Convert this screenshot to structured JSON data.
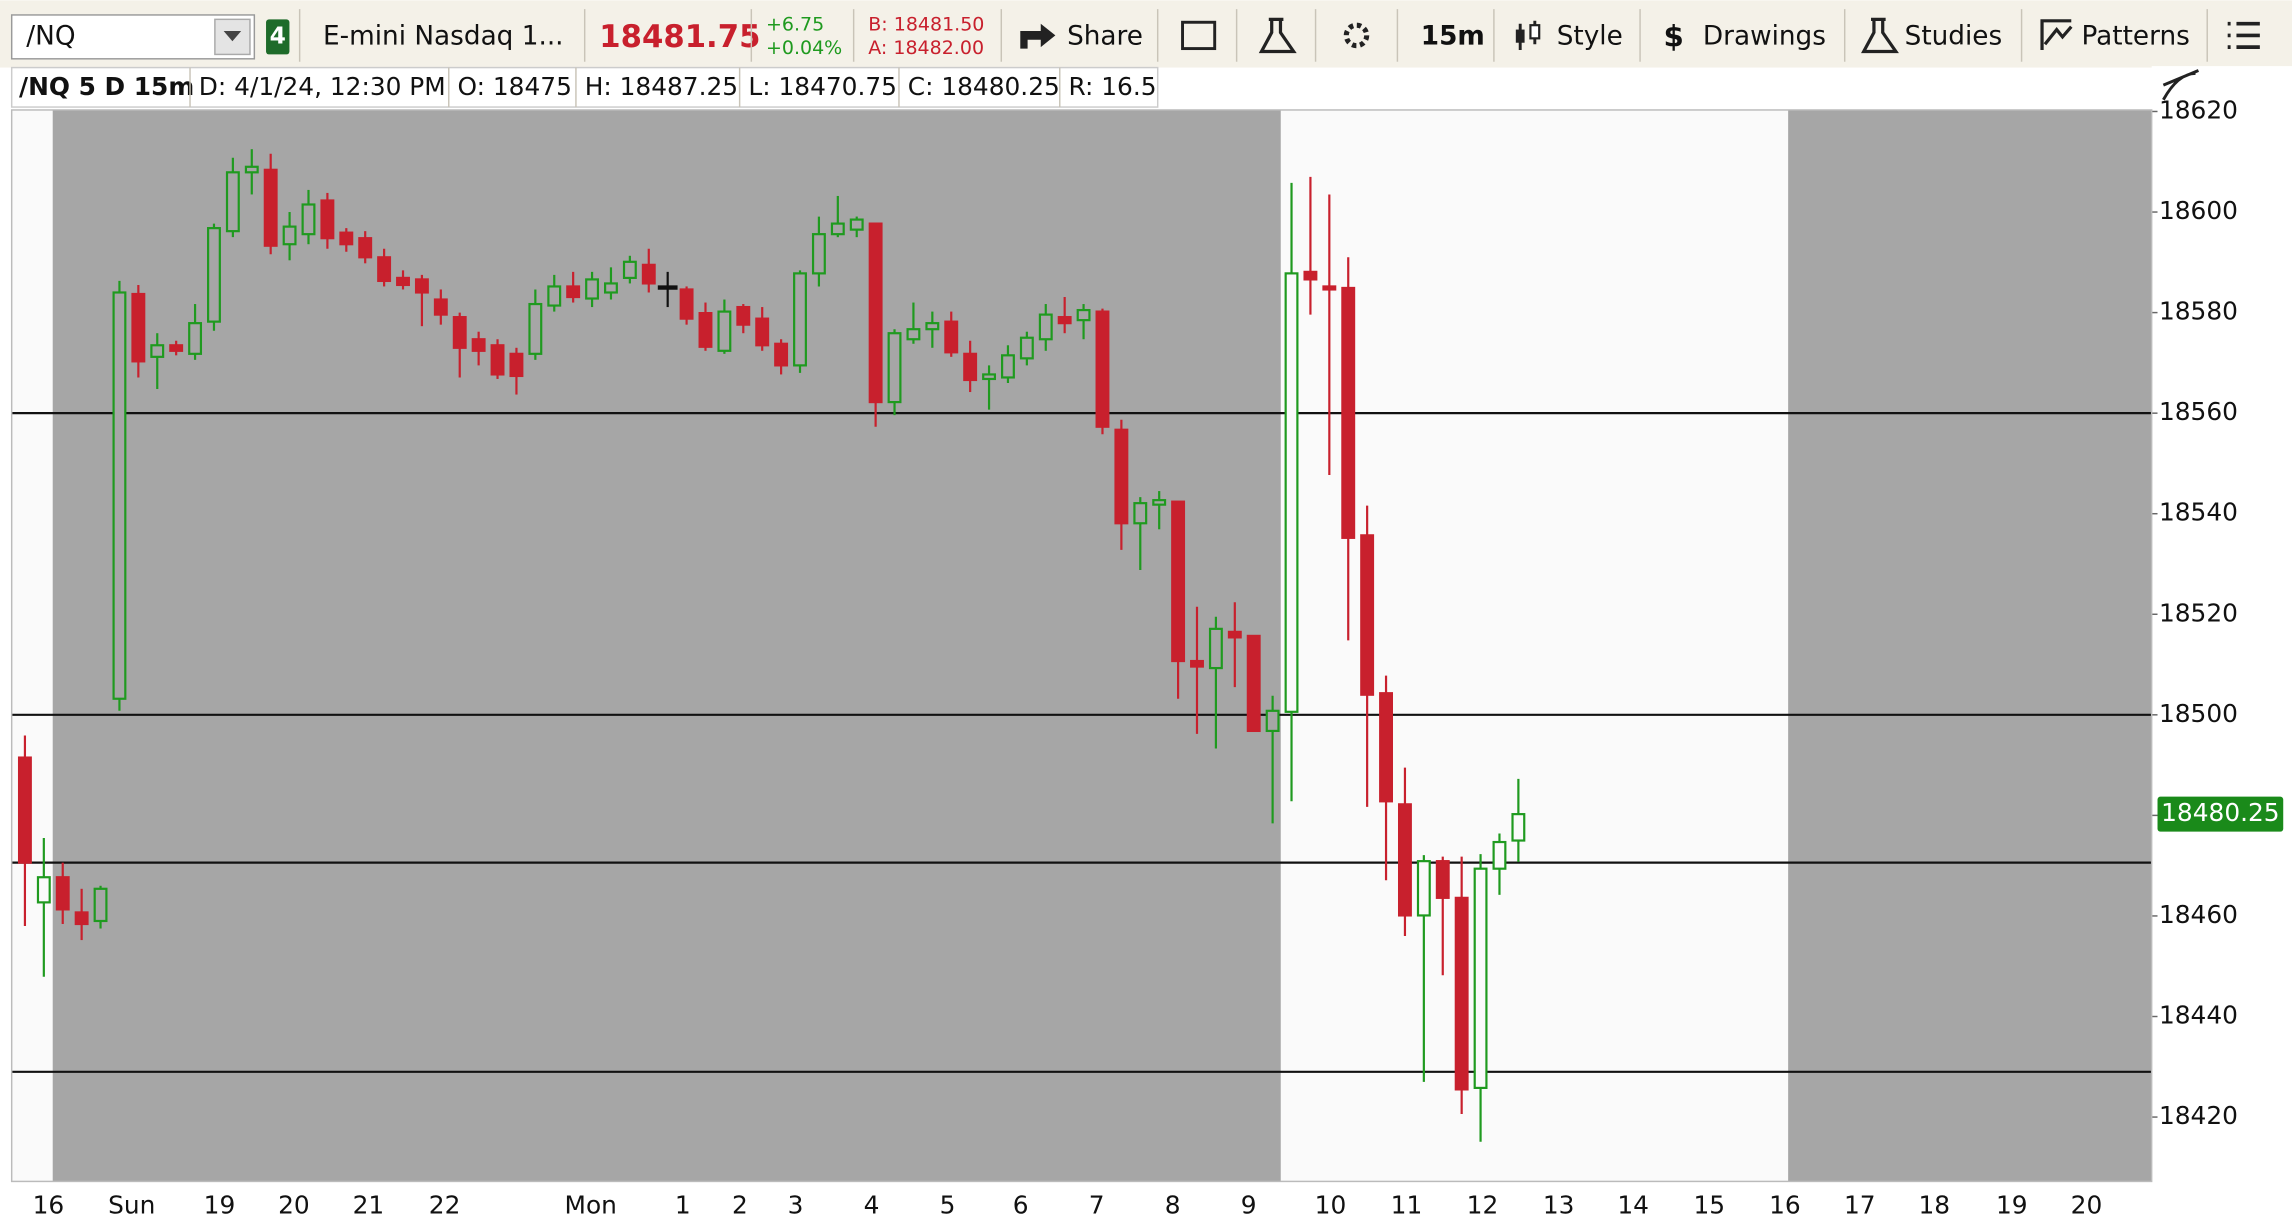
{
  "toolbar": {
    "symbol": "/NQ",
    "link_badge": "4",
    "description": "E-mini Nasdaq 1...",
    "last": "18481.75",
    "change": "+6.75",
    "change_pct": "+0.04%",
    "bid": "B: 18481.50",
    "ask": "A: 18482.00",
    "share": "Share",
    "timeframe": "15m",
    "style": "Style",
    "drawings": "Drawings",
    "studies": "Studies",
    "patterns": "Patterns"
  },
  "info_bar": {
    "symbol_period": "/NQ 5 D 15m",
    "date": "D: 4/1/24, 12:30 PM",
    "open": "O: 18475",
    "high": "H: 18487.25",
    "low": "L: 18470.75",
    "close": "C: 18480.25",
    "range": "R: 16.5"
  },
  "chart_data": {
    "type": "candlestick",
    "up_color": "#1f9a1f",
    "down_color": "#c8202d",
    "doji_color": "#111111",
    "shade_color": "#a6a6a6",
    "background": "#fafafa",
    "shaded_ranges": [
      [
        1.47,
        66.43
      ],
      [
        93.27,
        112.5
      ]
    ],
    "hlines": [
      18560,
      18500,
      18470.6,
      18429
    ],
    "last_price_color": "#1a8a1a",
    "x": [
      0,
      1,
      2,
      3,
      4,
      5,
      6,
      7,
      8,
      9,
      10,
      11,
      12,
      13,
      14,
      15,
      16,
      17,
      18,
      19,
      20,
      21,
      22,
      23,
      24,
      25,
      26,
      27,
      28,
      29,
      30,
      31,
      32,
      33,
      34,
      35,
      36,
      37,
      38,
      39,
      40,
      41,
      42,
      43,
      44,
      45,
      46,
      47,
      48,
      49,
      50,
      51,
      52,
      53,
      54,
      55,
      56,
      57,
      58,
      59,
      60,
      61,
      62,
      63,
      64,
      65,
      66,
      67,
      68,
      69,
      70,
      71,
      72,
      73,
      74,
      75,
      76,
      77,
      78,
      79
    ],
    "open": [
      18491.5,
      18462.7,
      18467.7,
      18460.7,
      18459,
      18503.2,
      18583.7,
      18571.2,
      18573.5,
      18571.8,
      18578.2,
      18596.2,
      18607.9,
      18608.4,
      18593.6,
      18595.6,
      18602.3,
      18595.9,
      18594.8,
      18591,
      18586.9,
      18586.6,
      18582.6,
      18579.1,
      18574.7,
      18573.5,
      18571.8,
      18571.8,
      18581.4,
      18585.2,
      18582.8,
      18584,
      18586.9,
      18589.5,
      18585.2,
      18584.6,
      18579.9,
      18572.4,
      18581.1,
      18578.8,
      18573.8,
      18569.5,
      18587.8,
      18595.6,
      18596.5,
      18597.7,
      18562.2,
      18574.7,
      18576.7,
      18578.2,
      18571.8,
      18566.8,
      18567.1,
      18570.9,
      18574.7,
      18579.1,
      18578.5,
      18580.2,
      18556.7,
      18538.1,
      18541.8,
      18542.4,
      18510.7,
      18509.3,
      18516.5,
      18515.7,
      18496.8,
      18500.6,
      18588.1,
      18585.2,
      18584.9,
      18535.7,
      18504.3,
      18482.2,
      18460.1,
      18470.9,
      18463.6,
      18425.8,
      18469.4,
      18475
    ],
    "high": [
      18495.9,
      18475.5,
      18470.6,
      18465.4,
      18466,
      18586.3,
      18585.5,
      18575.9,
      18574.4,
      18581.7,
      18597.7,
      18610.8,
      18612.5,
      18611.6,
      18600,
      18604.4,
      18603.8,
      18596.8,
      18596.2,
      18592.7,
      18588.4,
      18587.5,
      18584.6,
      18580,
      18576.2,
      18574.7,
      18573,
      18584.6,
      18587.5,
      18588.1,
      18588.1,
      18589,
      18591.3,
      18592.7,
      18588.1,
      18585.2,
      18582,
      18582.6,
      18581.7,
      18581.1,
      18574.7,
      18588.4,
      18599.1,
      18603.2,
      18599.1,
      18597.7,
      18576.7,
      18582,
      18580.2,
      18580.2,
      18574.4,
      18569.5,
      18573.5,
      18576.2,
      18581.7,
      18583.1,
      18581.7,
      18580.8,
      18558.7,
      18543.3,
      18544.5,
      18542.4,
      18521.5,
      18519.5,
      18522.4,
      18515.7,
      18503.8,
      18605.8,
      18607,
      18603.5,
      18591,
      18541.6,
      18507.8,
      18489.5,
      18472.1,
      18471.8,
      18471.8,
      18472.3,
      18476.4,
      18487.25
    ],
    "low": [
      18458,
      18447.9,
      18458.4,
      18455.2,
      18457.5,
      18500.8,
      18567.1,
      18564.8,
      18571.5,
      18570.6,
      18576.4,
      18595,
      18603.5,
      18591.6,
      18590.4,
      18593.6,
      18592.7,
      18592.1,
      18589.8,
      18585.2,
      18584.6,
      18577.3,
      18577.6,
      18567.1,
      18569.5,
      18566.8,
      18563.7,
      18570.6,
      18580.2,
      18582,
      18581.1,
      18582.6,
      18585.8,
      18584,
      18581.1,
      18577.6,
      18572.4,
      18571.8,
      18575.9,
      18572.4,
      18567.7,
      18568,
      18585.2,
      18595,
      18595,
      18557.3,
      18559.6,
      18573.8,
      18573,
      18571.2,
      18564.2,
      18560.7,
      18566,
      18569.5,
      18572.4,
      18575.9,
      18574.7,
      18555.8,
      18532.8,
      18528.8,
      18536.9,
      18503.2,
      18496.2,
      18493.3,
      18505.5,
      18496.8,
      18478.4,
      18482.8,
      18579.6,
      18547.7,
      18514.8,
      18481.7,
      18467.1,
      18456,
      18427,
      18448.2,
      18420.6,
      18415.1,
      18464.2,
      18470.75
    ],
    "close": [
      18470.6,
      18467.7,
      18461.3,
      18458.4,
      18465.4,
      18584,
      18570.3,
      18573.5,
      18572.4,
      18577.9,
      18596.8,
      18607.9,
      18609,
      18593.3,
      18597.1,
      18601.5,
      18594.8,
      18593.6,
      18591,
      18586.3,
      18585.5,
      18584,
      18579.6,
      18573,
      18572.4,
      18567.7,
      18567.4,
      18581.7,
      18585.2,
      18583.1,
      18586.6,
      18585.8,
      18590.1,
      18585.8,
      18585.2,
      18578.8,
      18573.2,
      18580.2,
      18577.6,
      18573.5,
      18569.5,
      18587.8,
      18595.6,
      18597.7,
      18598.5,
      18562.2,
      18575.9,
      18576.7,
      18577.9,
      18572.1,
      18566.6,
      18567.7,
      18571.5,
      18575,
      18579.6,
      18577.9,
      18580.5,
      18557.3,
      18538.1,
      18542.1,
      18542.7,
      18510.7,
      18509.6,
      18517.1,
      18515.4,
      18496.8,
      18500.8,
      18587.8,
      18586.6,
      18584.6,
      18535.2,
      18504,
      18482.8,
      18460.1,
      18470.9,
      18463.6,
      18425.5,
      18469.4,
      18474.7,
      18480.25
    ],
    "xlim": [
      -0.7,
      112.5
    ],
    "xticks": [
      {
        "value": 1.24,
        "label": "16"
      },
      {
        "value": 5.65,
        "label": "Sun"
      },
      {
        "value": 10.29,
        "label": "19"
      },
      {
        "value": 14.23,
        "label": "20"
      },
      {
        "value": 18.17,
        "label": "21"
      },
      {
        "value": 22.2,
        "label": "22"
      },
      {
        "value": 29.93,
        "label": "Mon"
      },
      {
        "value": 34.8,
        "label": "1"
      },
      {
        "value": 37.82,
        "label": "2"
      },
      {
        "value": 40.76,
        "label": "3"
      },
      {
        "value": 44.78,
        "label": "4"
      },
      {
        "value": 48.8,
        "label": "5"
      },
      {
        "value": 52.67,
        "label": "6"
      },
      {
        "value": 56.69,
        "label": "7"
      },
      {
        "value": 60.71,
        "label": "8"
      },
      {
        "value": 64.73,
        "label": "9"
      },
      {
        "value": 69.06,
        "label": "10"
      },
      {
        "value": 73.08,
        "label": "11"
      },
      {
        "value": 77.1,
        "label": "12"
      },
      {
        "value": 81.13,
        "label": "13"
      },
      {
        "value": 85.07,
        "label": "14"
      },
      {
        "value": 89.1,
        "label": "15"
      },
      {
        "value": 93.1,
        "label": "16"
      },
      {
        "value": 97.06,
        "label": "17"
      },
      {
        "value": 101,
        "label": "18"
      },
      {
        "value": 105.1,
        "label": "19"
      },
      {
        "value": 109.05,
        "label": "20"
      }
    ],
    "ylim": [
      18407.2,
      18620.3
    ],
    "yticks": [
      18420,
      18440,
      18460,
      18480,
      18500,
      18520,
      18540,
      18560,
      18580,
      18600,
      18620
    ]
  }
}
